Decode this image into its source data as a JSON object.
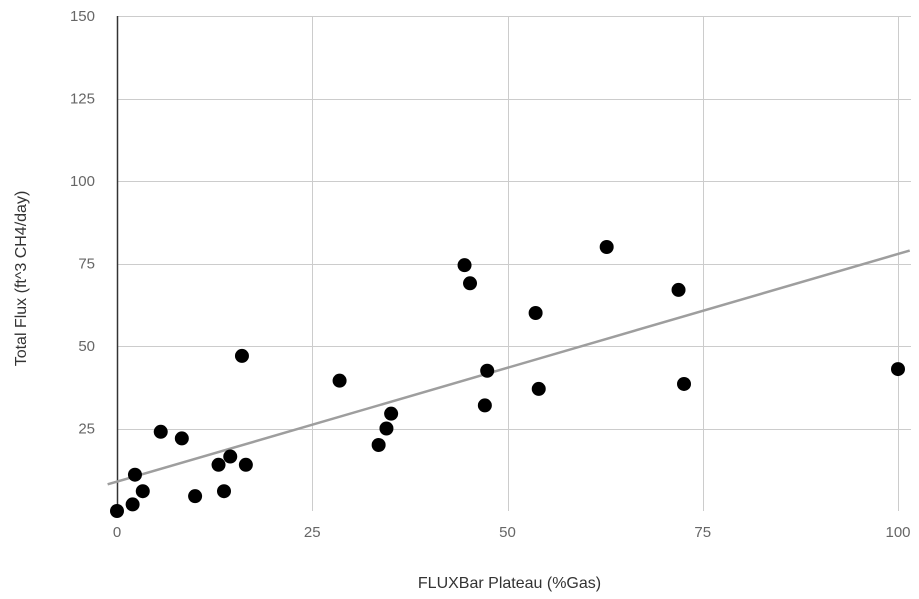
{
  "chart_data": {
    "type": "scatter",
    "title": "",
    "xlabel": "FLUXBar Plateau (%Gas)",
    "ylabel": "Total Flux (ft^3 CH4/day)",
    "xlim": [
      0,
      100
    ],
    "ylim": [
      0,
      150
    ],
    "xticks": [
      {
        "value": 0,
        "label": "0"
      },
      {
        "value": 25,
        "label": "25"
      },
      {
        "value": 50,
        "label": "50"
      },
      {
        "value": 75,
        "label": "75"
      },
      {
        "value": 100,
        "label": "100"
      }
    ],
    "yticks": [
      {
        "value": 25,
        "label": "25"
      },
      {
        "value": 50,
        "label": "50"
      },
      {
        "value": 75,
        "label": "75"
      },
      {
        "value": 100,
        "label": "100"
      },
      {
        "value": 125,
        "label": "125"
      },
      {
        "value": 150,
        "label": "150"
      }
    ],
    "grid": true,
    "legend": "none",
    "point_color": "#000000",
    "trendline_color": "#9e9e9e",
    "grid_color": "#cccccc",
    "axis_color": "#333333",
    "series": [
      {
        "points": [
          {
            "x": 0,
            "y": 0
          },
          {
            "x": 2,
            "y": 2
          },
          {
            "x": 2.3,
            "y": 11
          },
          {
            "x": 3.3,
            "y": 6
          },
          {
            "x": 5.6,
            "y": 24
          },
          {
            "x": 8.3,
            "y": 22
          },
          {
            "x": 10,
            "y": 4.5
          },
          {
            "x": 13,
            "y": 14
          },
          {
            "x": 13.7,
            "y": 6
          },
          {
            "x": 14.5,
            "y": 16.5
          },
          {
            "x": 16,
            "y": 47
          },
          {
            "x": 16.5,
            "y": 14
          },
          {
            "x": 28.5,
            "y": 39.5
          },
          {
            "x": 33.5,
            "y": 20
          },
          {
            "x": 34.5,
            "y": 25
          },
          {
            "x": 35.1,
            "y": 29.5
          },
          {
            "x": 44.5,
            "y": 74.5
          },
          {
            "x": 45.2,
            "y": 69
          },
          {
            "x": 47.1,
            "y": 32
          },
          {
            "x": 47.4,
            "y": 42.5
          },
          {
            "x": 53.6,
            "y": 60
          },
          {
            "x": 54,
            "y": 37
          },
          {
            "x": 62.7,
            "y": 80
          },
          {
            "x": 71.9,
            "y": 67
          },
          {
            "x": 72.6,
            "y": 38.5
          },
          {
            "x": 100,
            "y": 43
          }
        ]
      }
    ],
    "trendline": {
      "type": "linear",
      "slope": 0.69,
      "intercept": 8.9
    }
  }
}
